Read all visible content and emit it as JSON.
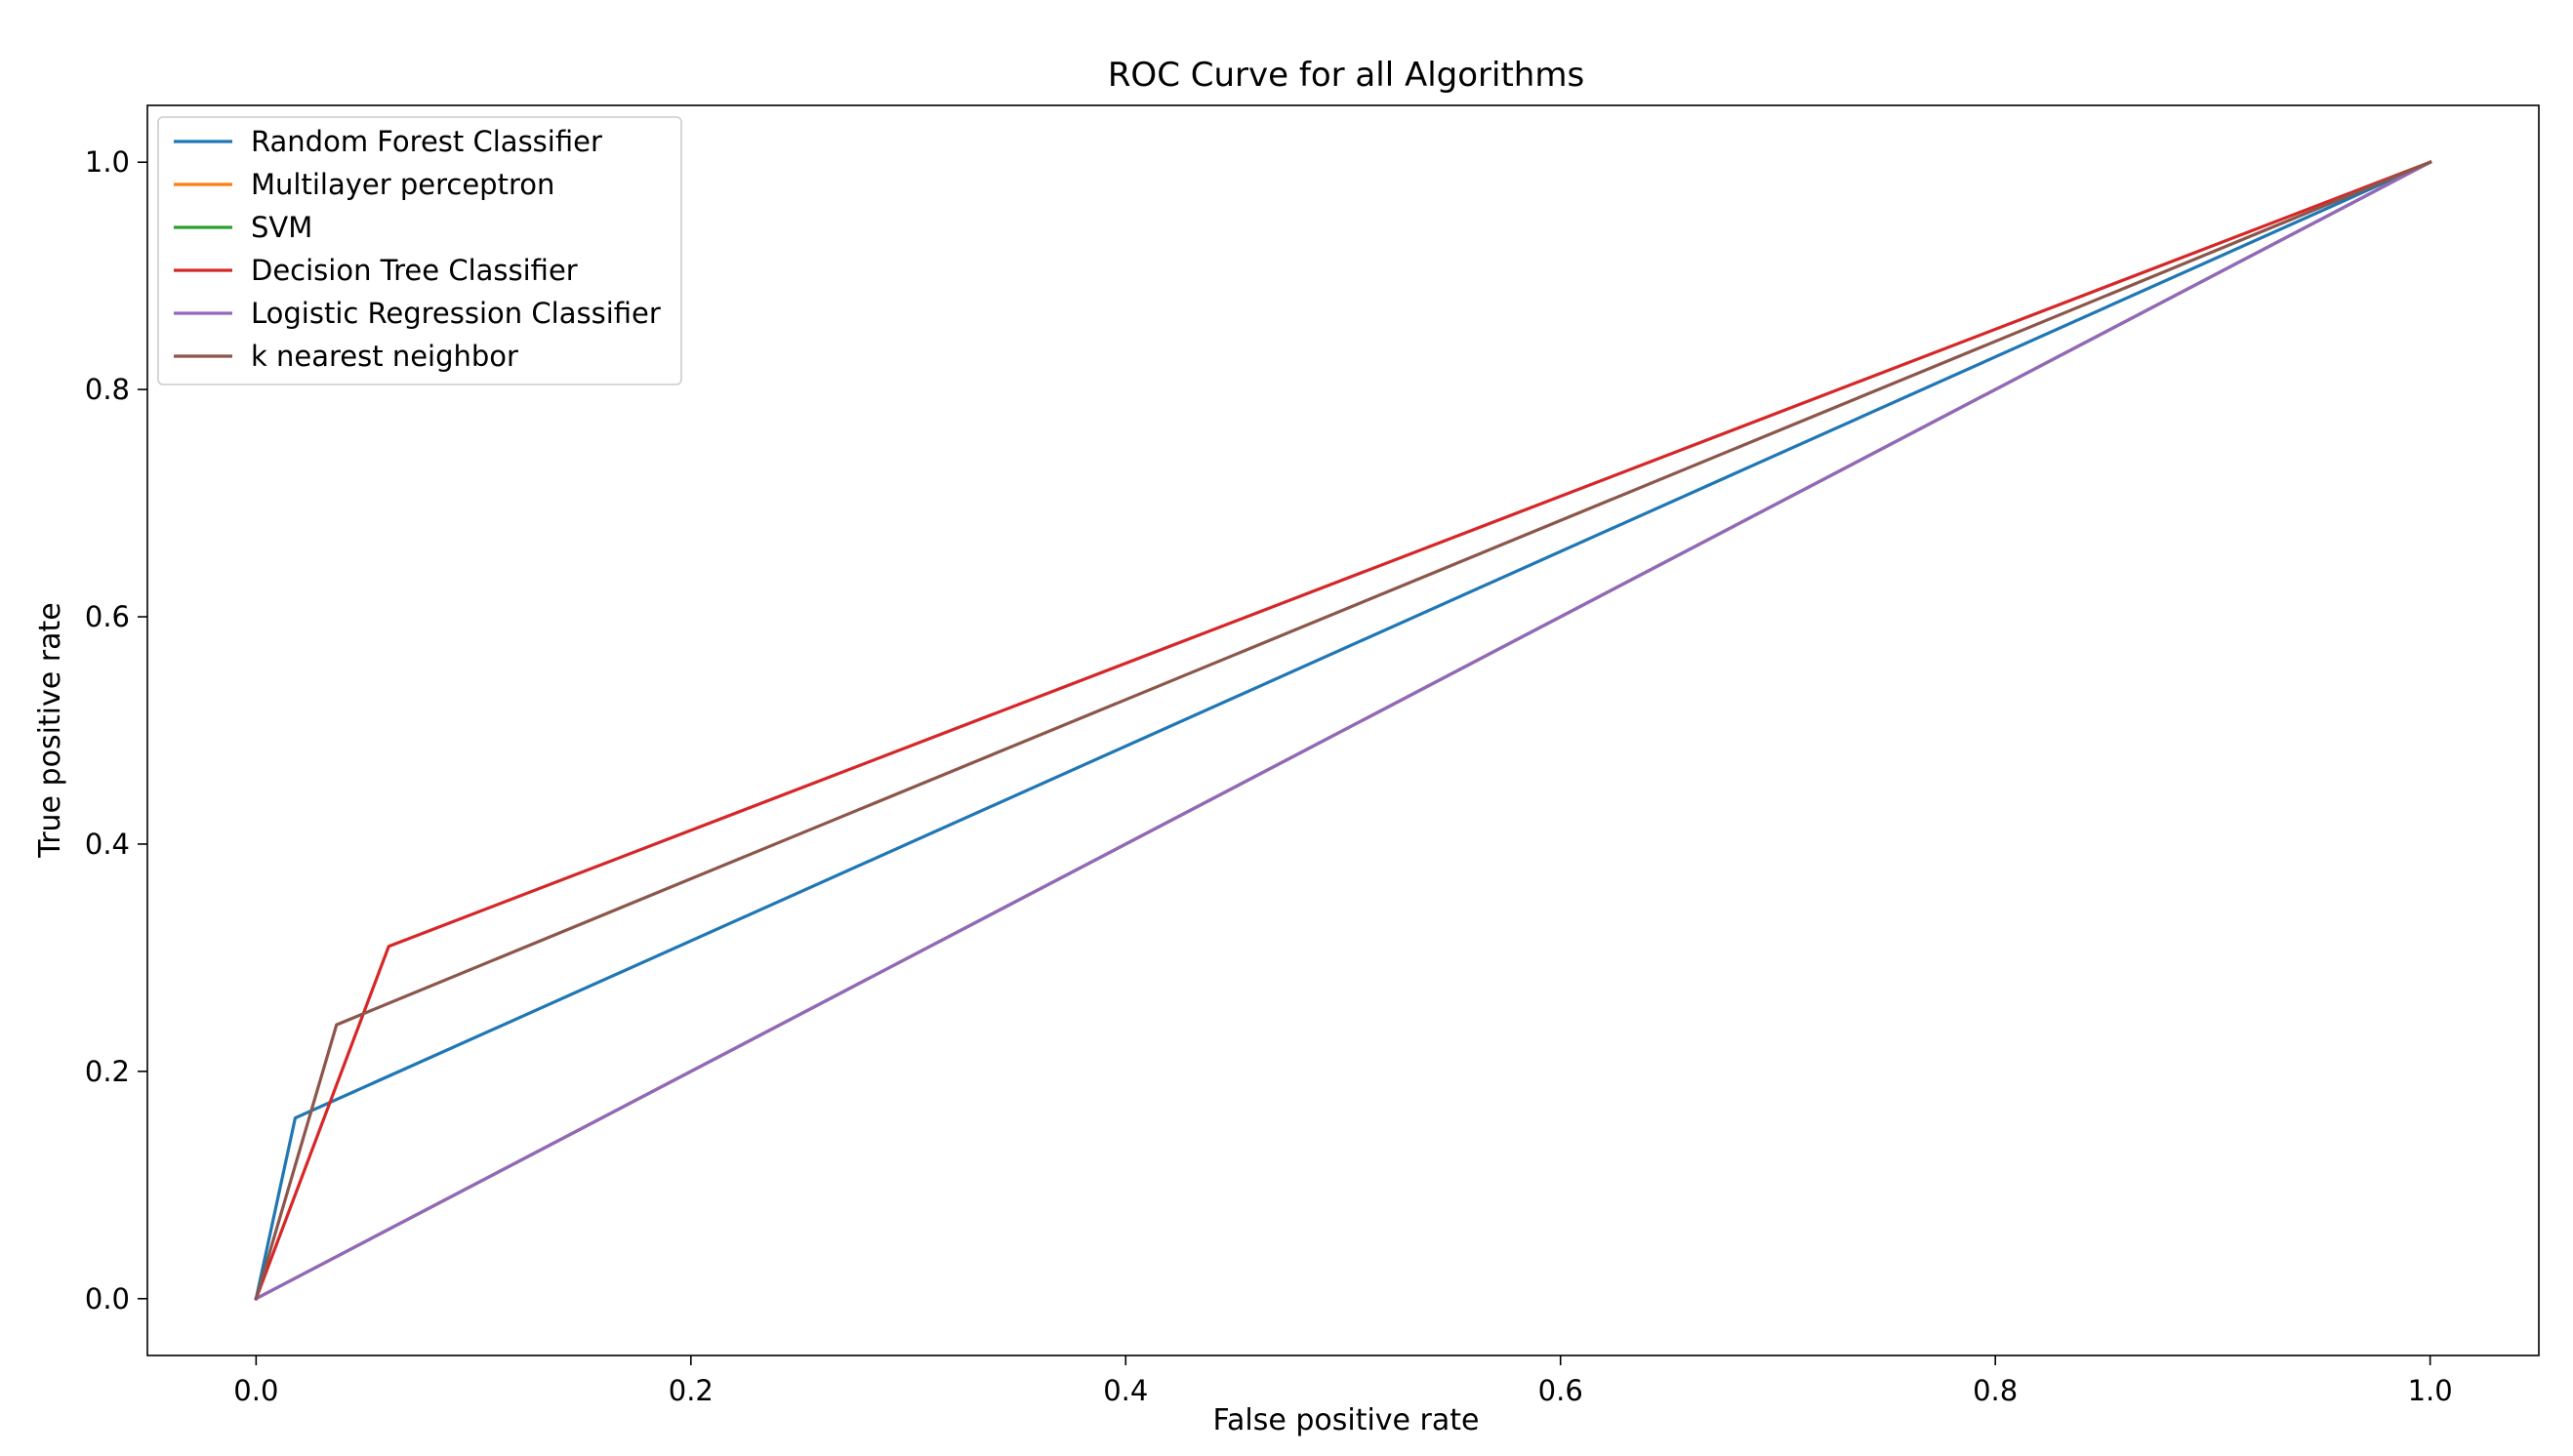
{
  "chart_data": {
    "type": "line",
    "title": "ROC Curve for all Algorithms",
    "xlabel": "False positive rate",
    "ylabel": "True positive rate",
    "xlim": [
      -0.05,
      1.05
    ],
    "ylim": [
      -0.05,
      1.05
    ],
    "xticks": [
      0.0,
      0.2,
      0.4,
      0.6,
      0.8,
      1.0
    ],
    "yticks": [
      0.0,
      0.2,
      0.4,
      0.6,
      0.8,
      1.0
    ],
    "xtick_labels": [
      "0.0",
      "0.2",
      "0.4",
      "0.6",
      "0.8",
      "1.0"
    ],
    "ytick_labels": [
      "0.0",
      "0.2",
      "0.4",
      "0.6",
      "0.8",
      "1.0"
    ],
    "grid": false,
    "legend_position": "upper-left",
    "series": [
      {
        "name": "Random Forest Classifier",
        "color": "#1f77b4",
        "x": [
          0.0,
          0.018,
          1.0
        ],
        "y": [
          0.0,
          0.159,
          1.0
        ]
      },
      {
        "name": "Multilayer perceptron",
        "color": "#ff7f0e",
        "x": [
          0.0,
          1.0
        ],
        "y": [
          0.0,
          1.0
        ]
      },
      {
        "name": "SVM",
        "color": "#2ca02c",
        "x": [
          0.0,
          1.0
        ],
        "y": [
          0.0,
          1.0
        ]
      },
      {
        "name": "Decision Tree Classifier",
        "color": "#d62728",
        "x": [
          0.0,
          0.061,
          1.0
        ],
        "y": [
          0.0,
          0.31,
          1.0
        ]
      },
      {
        "name": "Logistic Regression Classifier",
        "color": "#9467bd",
        "x": [
          0.0,
          1.0
        ],
        "y": [
          0.0,
          1.0
        ]
      },
      {
        "name": "k nearest neighbor",
        "color": "#8c564b",
        "x": [
          0.0,
          0.037,
          1.0
        ],
        "y": [
          0.0,
          0.241,
          1.0
        ]
      }
    ]
  }
}
